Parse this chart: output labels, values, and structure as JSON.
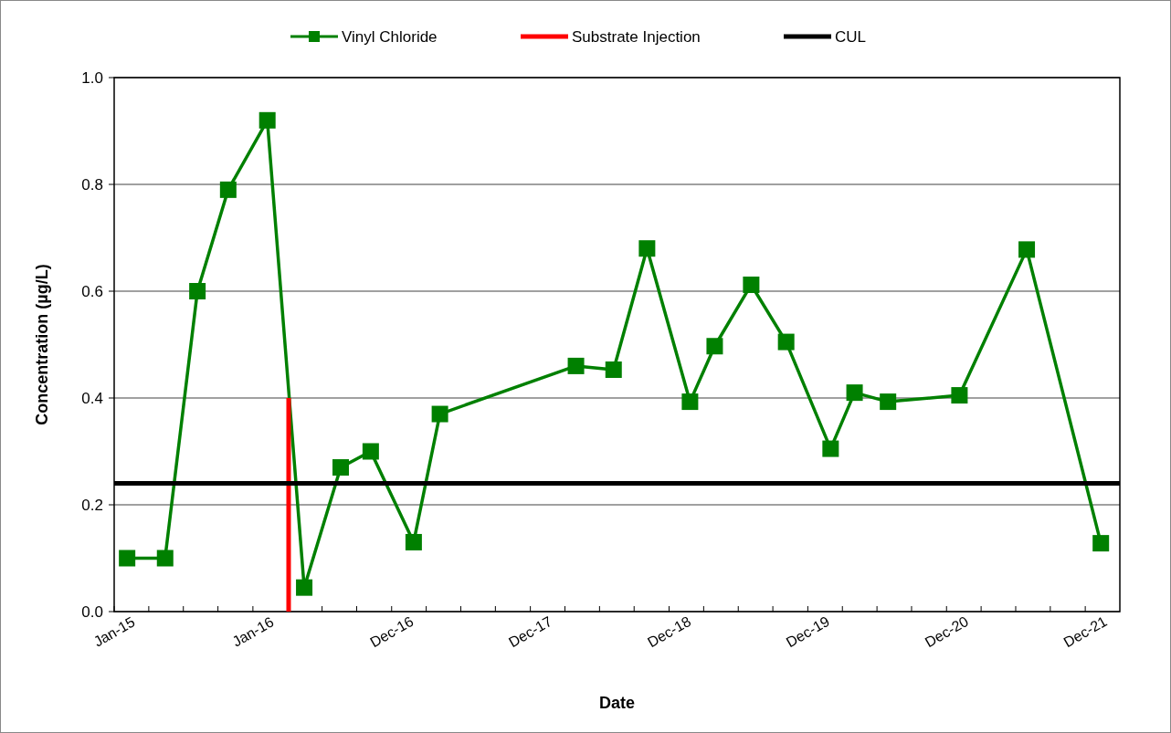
{
  "chart_data": {
    "type": "line",
    "xlabel": "Date",
    "ylabel": "Concentration (µg/L)",
    "legend": "top",
    "grid": "y",
    "marker": "square",
    "line_style": "solid",
    "xlim": [
      "2015-01-01",
      "2022-03-31"
    ],
    "xticks": [
      {
        "value": "2015-01-01",
        "label": "Jan-15"
      },
      {
        "value": "2015-04-02",
        "label": null
      },
      {
        "value": "2015-07-02",
        "label": null
      },
      {
        "value": "2015-10-01",
        "label": null
      },
      {
        "value": "2016-01-01",
        "label": "Jan-16"
      },
      {
        "value": "2016-04-01",
        "label": null
      },
      {
        "value": "2016-07-01",
        "label": null
      },
      {
        "value": "2016-09-30",
        "label": null
      },
      {
        "value": "2016-12-31",
        "label": "Dec-16"
      },
      {
        "value": "2017-04-01",
        "label": null
      },
      {
        "value": "2017-07-01",
        "label": null
      },
      {
        "value": "2017-09-30",
        "label": null
      },
      {
        "value": "2017-12-31",
        "label": "Dec-17"
      },
      {
        "value": "2018-04-01",
        "label": null
      },
      {
        "value": "2018-07-01",
        "label": null
      },
      {
        "value": "2018-09-30",
        "label": null
      },
      {
        "value": "2018-12-31",
        "label": "Dec-18"
      },
      {
        "value": "2019-04-01",
        "label": null
      },
      {
        "value": "2019-07-01",
        "label": null
      },
      {
        "value": "2019-09-30",
        "label": null
      },
      {
        "value": "2019-12-31",
        "label": "Dec-19"
      },
      {
        "value": "2020-03-31",
        "label": null
      },
      {
        "value": "2020-06-30",
        "label": null
      },
      {
        "value": "2020-09-29",
        "label": null
      },
      {
        "value": "2020-12-30",
        "label": "Dec-20"
      },
      {
        "value": "2021-03-31",
        "label": null
      },
      {
        "value": "2021-06-30",
        "label": null
      },
      {
        "value": "2021-09-29",
        "label": null
      },
      {
        "value": "2021-12-30",
        "label": "Dec-21"
      }
    ],
    "ylim": [
      0,
      1
    ],
    "yticks": [
      {
        "value": 0,
        "label": "0.0"
      },
      {
        "value": 0.2,
        "label": "0.2"
      },
      {
        "value": 0.4,
        "label": "0.4"
      },
      {
        "value": 0.6,
        "label": "0.6"
      },
      {
        "value": 0.8,
        "label": "0.8"
      },
      {
        "value": 1,
        "label": "1.0"
      }
    ],
    "series": [
      {
        "name": "Vinyl Chloride",
        "color": "#008000",
        "x": [
          "2015-02-04",
          "2015-05-15",
          "2015-08-08",
          "2015-10-28",
          "2016-02-08",
          "2016-05-15",
          "2016-08-19",
          "2016-11-06",
          "2017-02-27",
          "2017-05-07",
          "2018-04-30",
          "2018-08-07",
          "2018-11-03",
          "2019-02-24",
          "2019-04-30",
          "2019-08-04",
          "2019-11-04",
          "2020-02-29",
          "2020-05-02",
          "2020-07-29",
          "2021-02-02",
          "2021-07-29",
          "2022-02-09"
        ],
        "values": [
          0.1,
          0.1,
          0.6,
          0.79,
          0.92,
          0.045,
          0.27,
          0.3,
          0.13,
          0.37,
          0.46,
          0.453,
          0.68,
          0.393,
          0.497,
          0.612,
          0.505,
          0.305,
          0.41,
          0.393,
          0.405,
          0.678,
          0.128
        ]
      },
      {
        "name": "Substrate Injection",
        "color": "#ff0000",
        "marker": "none",
        "x": [
          "2016-04-04",
          "2016-04-04"
        ],
        "values": [
          0,
          0.4
        ]
      },
      {
        "name": "CUL",
        "color": "#000000",
        "marker": "none",
        "x": [
          "2015-01-01",
          "2022-03-31"
        ],
        "values": [
          0.24,
          0.24
        ]
      }
    ]
  }
}
